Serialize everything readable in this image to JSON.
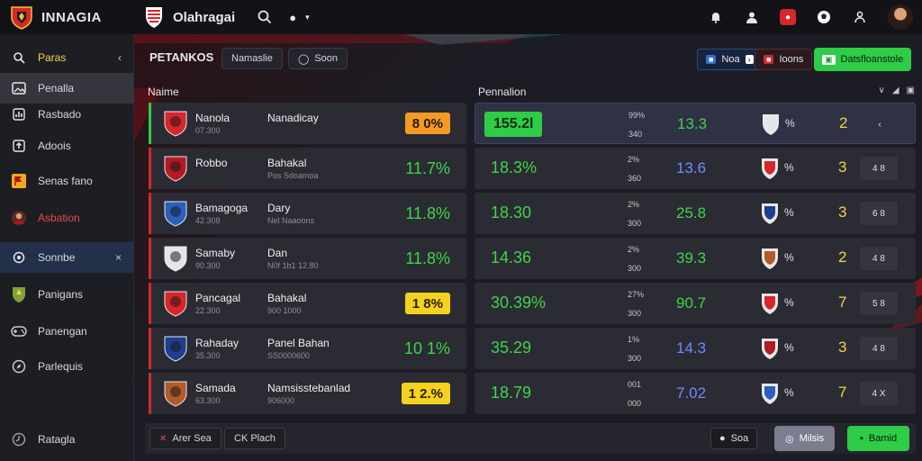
{
  "app": {
    "brand": "INNAGIA",
    "club_title": "Olahragai"
  },
  "colors": {
    "accent_green": "#2ecc47",
    "accent_red": "#d8262b",
    "value_green": "#3ed44a",
    "value_blue": "#6f8bff",
    "rank_yellow": "#f2d34a",
    "warn_yellow": "#f5d21f",
    "orange": "#f59a23"
  },
  "sidebar": {
    "items": [
      {
        "label": "Paras",
        "icon": "search-icon",
        "end": "‹"
      },
      {
        "label": "Penalla",
        "icon": "image-icon"
      },
      {
        "label": "Rasbado",
        "icon": "chart-icon"
      },
      {
        "label": "Adoois",
        "icon": "upload-icon"
      },
      {
        "label": "Senas fano",
        "icon": "flag-icon"
      },
      {
        "label": "Asbation",
        "icon": "player-icon"
      },
      {
        "label": "Sonnbe",
        "icon": "globe-icon",
        "end": "×"
      },
      {
        "label": "Panigans",
        "icon": "crest-icon"
      },
      {
        "label": "Panengan",
        "icon": "gamepad-icon"
      },
      {
        "label": "Parlequis",
        "icon": "compass-icon"
      },
      {
        "label": "Ratagla",
        "icon": "clock-icon"
      }
    ]
  },
  "toolbar": {
    "title": "PETANKOS",
    "chip1": "Namaslie",
    "chip2": "Soon",
    "btn1": "Noa",
    "btn2": "Ioons",
    "btn3": "Datsfloanstole"
  },
  "headers": {
    "left": "Naime",
    "right": "Pennalion"
  },
  "rows": [
    {
      "n1": "Nanola",
      "s1": "07.300",
      "n2": "Nanadicay",
      "s2": "",
      "left_value": "8 0%",
      "left_style": "orange",
      "bar": "green",
      "right_value": "155.2l",
      "right_boxed": true,
      "mini1": "99%",
      "mini2": "340",
      "v2": "13.3",
      "v2_color": "green",
      "pct": "%",
      "rank": "2",
      "ctl": "‹",
      "ctl_plain": true
    },
    {
      "n1": "Robbo",
      "s1": "",
      "n2": "Bahakal",
      "s2": "Pos Sdoamoa",
      "left_value": "11.7%",
      "left_style": "plain",
      "bar": "red",
      "right_value": "18.3%",
      "right_boxed": false,
      "mini1": "2%",
      "mini2": "360",
      "v2": "13.6",
      "v2_color": "blue",
      "pct": "%",
      "rank": "3",
      "ctl": "4 8",
      "ctl_plain": false
    },
    {
      "n1": "Bamagoga",
      "s1": "42.308",
      "n2": "Dary",
      "s2": "Nel Naaoons",
      "left_value": "11.8%",
      "left_style": "plain",
      "bar": "red",
      "right_value": "18.30",
      "right_boxed": false,
      "mini1": "2%",
      "mini2": "300",
      "v2": "25.8",
      "v2_color": "green",
      "pct": "%",
      "rank": "3",
      "ctl": "6 8",
      "ctl_plain": false
    },
    {
      "n1": "Samaby",
      "s1": "90.300",
      "n2": "Dan",
      "s2": "N0f 1b1 12.80",
      "left_value": "11.8%",
      "left_style": "plain",
      "bar": "red",
      "right_value": "14.36",
      "right_boxed": false,
      "mini1": "2%",
      "mini2": "300",
      "v2": "39.3",
      "v2_color": "green",
      "pct": "%",
      "rank": "2",
      "ctl": "4 8",
      "ctl_plain": false
    },
    {
      "n1": "Pancagal",
      "s1": "22.300",
      "n2": "Bahakal",
      "s2": "900 1000",
      "left_value": "1 8%",
      "left_style": "yellow",
      "bar": "red",
      "right_value": "30.39%",
      "right_boxed": false,
      "mini1": "27%",
      "mini2": "300",
      "v2": "90.7",
      "v2_color": "green",
      "pct": "%",
      "rank": "7",
      "ctl": "5 8",
      "ctl_plain": false
    },
    {
      "n1": "Rahaday",
      "s1": "35.300",
      "n2": "Panel Bahan",
      "s2": "SS0000600",
      "left_value": "10 1%",
      "left_style": "plain",
      "bar": "red",
      "right_value": "35.29",
      "right_boxed": false,
      "mini1": "1%",
      "mini2": "300",
      "v2": "14.3",
      "v2_color": "blue",
      "pct": "%",
      "rank": "3",
      "ctl": "4 8",
      "ctl_plain": false
    },
    {
      "n1": "Samada",
      "s1": "63.300",
      "n2": "Namsisstebanlad",
      "s2": "906000",
      "left_value": "1 2.%",
      "left_style": "yellow",
      "bar": "red",
      "right_value": "18.79",
      "right_boxed": false,
      "mini1": "001",
      "mini2": "000",
      "v2": "7.02",
      "v2_color": "blue",
      "pct": "%",
      "rank": "7",
      "ctl": "4 X",
      "ctl_plain": false
    }
  ],
  "footer": {
    "chip1": "Arer Sea",
    "chip2": "CK Plach",
    "btn1": "Soa",
    "btn2": "Milsis",
    "btn3": "Bamid"
  }
}
